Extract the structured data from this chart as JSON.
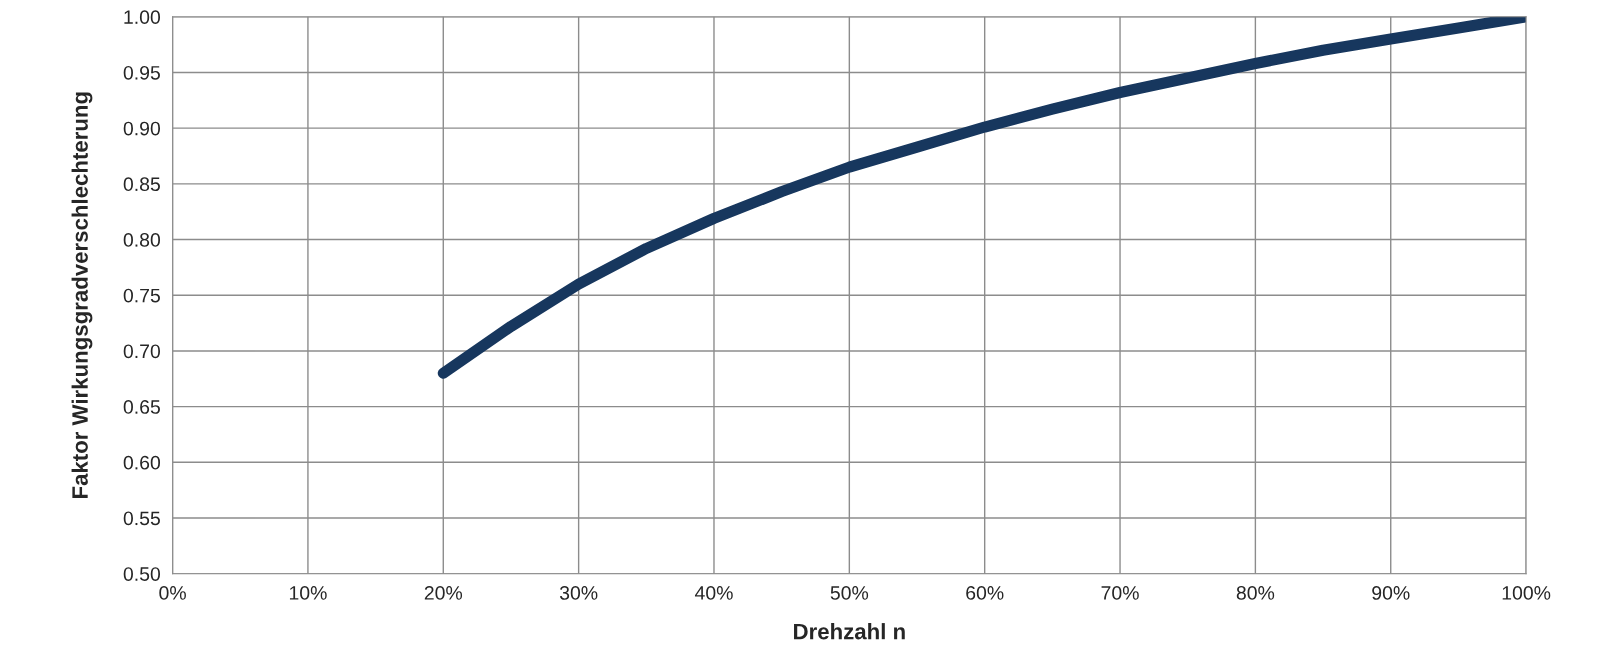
{
  "chart_data": {
    "type": "line",
    "xlabel": "Drehzahl n",
    "ylabel": "Faktor Wirkungsgradverschlechterung",
    "x": [
      20,
      25,
      30,
      35,
      40,
      45,
      50,
      55,
      60,
      65,
      70,
      75,
      80,
      85,
      90,
      95,
      100
    ],
    "series": [
      {
        "color": "#17375e",
        "values": [
          0.68,
          0.722,
          0.76,
          0.792,
          0.819,
          0.843,
          0.865,
          0.883,
          0.901,
          0.917,
          0.932,
          0.945,
          0.958,
          0.97,
          0.98,
          0.99,
          1.0
        ]
      }
    ],
    "xlim": [
      0,
      100
    ],
    "ylim": [
      0.5,
      1.0
    ],
    "xticks": [
      {
        "value": 0,
        "label": "0%"
      },
      {
        "value": 10,
        "label": "10%"
      },
      {
        "value": 20,
        "label": "20%"
      },
      {
        "value": 30,
        "label": "30%"
      },
      {
        "value": 40,
        "label": "40%"
      },
      {
        "value": 50,
        "label": "50%"
      },
      {
        "value": 60,
        "label": "60%"
      },
      {
        "value": 70,
        "label": "70%"
      },
      {
        "value": 80,
        "label": "80%"
      },
      {
        "value": 90,
        "label": "90%"
      },
      {
        "value": 100,
        "label": "100%"
      }
    ],
    "yticks": [
      {
        "value": 0.5,
        "label": "0.50"
      },
      {
        "value": 0.55,
        "label": "0.55"
      },
      {
        "value": 0.6,
        "label": "0.60"
      },
      {
        "value": 0.65,
        "label": "0.65"
      },
      {
        "value": 0.7,
        "label": "0.70"
      },
      {
        "value": 0.75,
        "label": "0.75"
      },
      {
        "value": 0.8,
        "label": "0.80"
      },
      {
        "value": 0.85,
        "label": "0.85"
      },
      {
        "value": 0.9,
        "label": "0.90"
      },
      {
        "value": 0.95,
        "label": "0.95"
      },
      {
        "value": 1.0,
        "label": "1.00"
      }
    ],
    "grid": true,
    "marker": "none",
    "line_style": "solid"
  }
}
